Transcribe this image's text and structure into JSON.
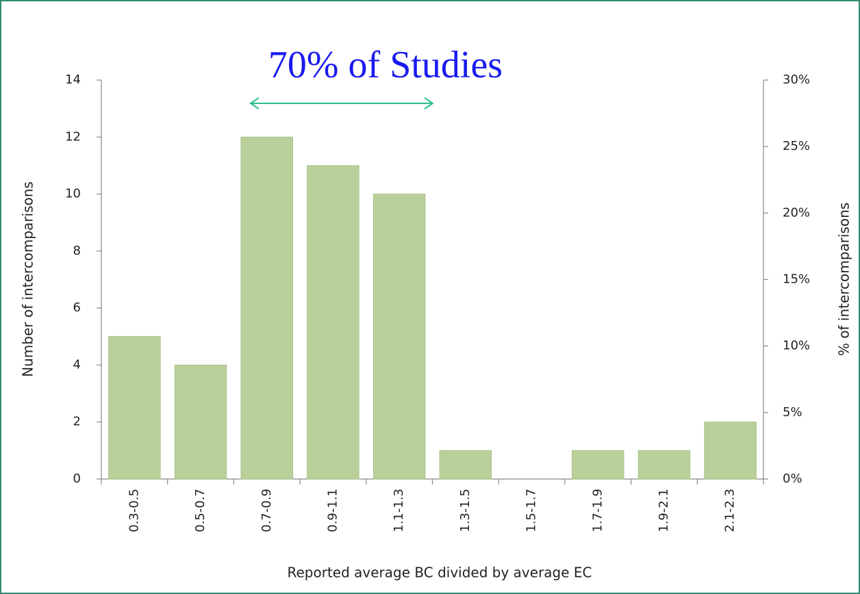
{
  "chart_data": {
    "type": "bar",
    "annotation": "70% of Studies",
    "xlabel": "Reported average BC divided by average EC",
    "ylabel": "Number of intercomparisons",
    "y2label": "% of intercomparisons",
    "categories": [
      "0.3-0.5",
      "0.5-0.7",
      "0.7-0.9",
      "0.9-1.1",
      "1.1-1.3",
      "1.3-1.5",
      "1.5-1.7",
      "1.7-1.9",
      "1.9-2.1",
      "2.1-2.3"
    ],
    "values": [
      5,
      4,
      12,
      11,
      10,
      1,
      0,
      1,
      1,
      2
    ],
    "color": "#bad09a",
    "ylim": [
      0,
      14
    ],
    "yticks": [
      0,
      2,
      4,
      6,
      8,
      10,
      12,
      14
    ],
    "y2lim": [
      0,
      30
    ],
    "y2ticks": [
      {
        "value": 0,
        "label": "0%"
      },
      {
        "value": 5,
        "label": "5%"
      },
      {
        "value": 10,
        "label": "10%"
      },
      {
        "value": 15,
        "label": "15%"
      },
      {
        "value": 20,
        "label": "20%"
      },
      {
        "value": 25,
        "label": "25%"
      },
      {
        "value": 30,
        "label": "30%"
      }
    ],
    "grid": false
  }
}
